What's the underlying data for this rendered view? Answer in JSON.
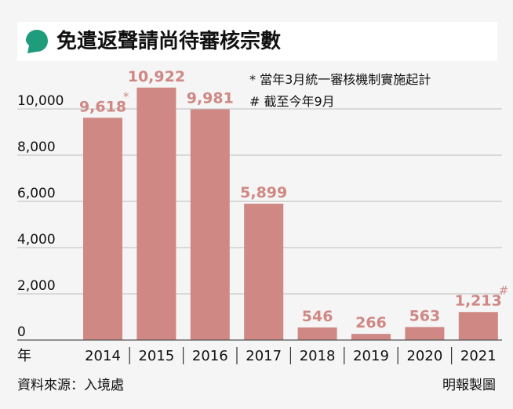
{
  "title": "免遣返聲請尚待審核宗數",
  "colors": {
    "bar": "#cf8884",
    "label": "#cf8884",
    "icon": "#1f9c7c",
    "background": "#f5f5f5",
    "title_bg": "#ffffff"
  },
  "icon": "speech-bubble-icon",
  "notes": [
    "* 當年3月統一審核機制實施起計",
    "# 截至今年9月"
  ],
  "source": "資料來源：入境處",
  "credit": "明報製圖",
  "chart_data": {
    "type": "bar",
    "title": "",
    "xlabel": "年",
    "ylabel": "",
    "categories": [
      "2014",
      "2015",
      "2016",
      "2017",
      "2018",
      "2019",
      "2020",
      "2021"
    ],
    "values": [
      9618,
      10922,
      9981,
      5899,
      546,
      266,
      563,
      1213
    ],
    "value_labels": [
      "9,618",
      "10,922",
      "9,981",
      "5,899",
      "546",
      "266",
      "563",
      "1,213"
    ],
    "value_marks": [
      "*",
      "",
      "",
      "",
      "",
      "",
      "",
      "#"
    ],
    "ylim": [
      0,
      12000
    ],
    "yticks": [
      0,
      2000,
      4000,
      6000,
      8000,
      10000
    ],
    "ytick_labels": [
      "0",
      "2,000",
      "4,000",
      "6,000",
      "8,000",
      "10,000"
    ],
    "grid": true,
    "legend": "none"
  }
}
